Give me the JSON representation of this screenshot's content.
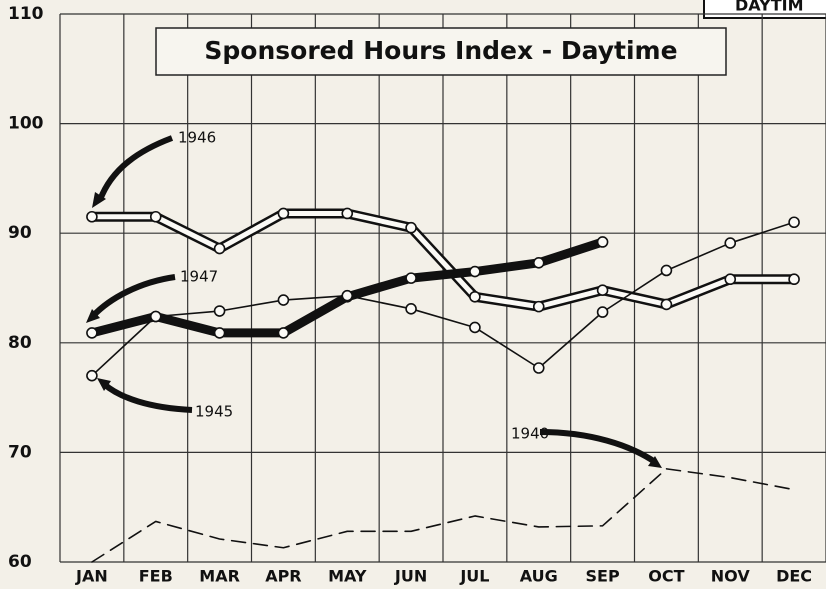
{
  "chart_data": {
    "type": "line",
    "title": "Sponsored Hours Index - Daytime",
    "corner_label": "DAYTIM",
    "categories": [
      "JAN",
      "FEB",
      "MAR",
      "APR",
      "MAY",
      "JUN",
      "JUL",
      "AUG",
      "SEP",
      "OCT",
      "NOV",
      "DEC"
    ],
    "ylim": [
      60,
      110
    ],
    "yticks": [
      60,
      70,
      80,
      90,
      100,
      110
    ],
    "grid": true,
    "series": [
      {
        "name": "1946",
        "color": "#111111",
        "style": "double",
        "markers": true,
        "values": [
          91.5,
          91.5,
          88.6,
          91.8,
          91.8,
          90.5,
          84.2,
          83.3,
          84.8,
          83.5,
          85.8,
          85.8
        ]
      },
      {
        "name": "1947",
        "color": "#111111",
        "style": "thick",
        "markers": true,
        "values": [
          80.9,
          82.4,
          80.9,
          80.9,
          84.2,
          85.9,
          86.5,
          87.3,
          89.2,
          null,
          null,
          null
        ]
      },
      {
        "name": "1945",
        "color": "#111111",
        "style": "thin",
        "markers": true,
        "values": [
          77.0,
          82.4,
          82.9,
          83.9,
          84.3,
          83.1,
          81.4,
          77.7,
          82.8,
          86.6,
          89.1,
          91.0
        ]
      },
      {
        "name": "1940",
        "color": "#111111",
        "style": "dashed",
        "markers": false,
        "values": [
          60.0,
          63.7,
          62.1,
          61.3,
          62.8,
          62.8,
          64.2,
          63.2,
          63.3,
          68.5,
          67.7,
          66.6
        ]
      }
    ]
  }
}
